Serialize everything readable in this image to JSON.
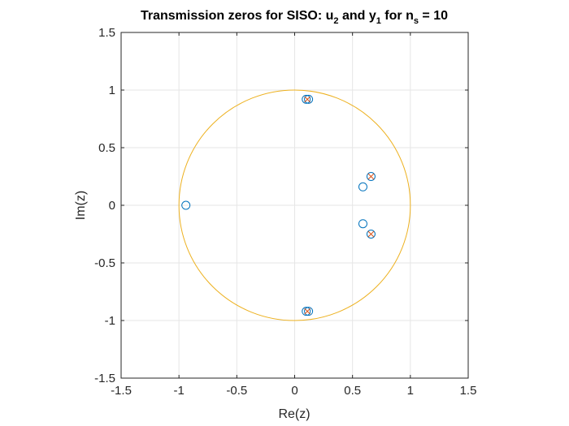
{
  "chart_data": {
    "type": "scatter",
    "title": {
      "prefix": "Transmission zeros for SISO: u",
      "u_sub": "2",
      "mid": " and y",
      "y_sub": "1",
      "for_text": " for n",
      "n_sub": "s",
      "suffix": " = 10"
    },
    "xlabel": "Re(z)",
    "ylabel": "Im(z)",
    "xlim": [
      -1.5,
      1.5
    ],
    "ylim": [
      -1.5,
      1.5
    ],
    "xticks": [
      -1.5,
      -1,
      -0.5,
      0,
      0.5,
      1,
      1.5
    ],
    "yticks": [
      -1.5,
      -1,
      -0.5,
      0,
      0.5,
      1,
      1.5
    ],
    "xtick_labels": [
      "-1.5",
      "-1",
      "-0.5",
      "0",
      "0.5",
      "1",
      "1.5"
    ],
    "ytick_labels": [
      "-1.5",
      "-1",
      "-0.5",
      "0",
      "0.5",
      "1",
      "1.5"
    ],
    "grid": true,
    "unit_circle": {
      "radius": 1,
      "color": "#EDB120"
    },
    "series": [
      {
        "marker": "circle",
        "color": "#0072BD",
        "points": [
          {
            "x": -0.94,
            "y": 0.0
          },
          {
            "x": 0.1,
            "y": 0.92
          },
          {
            "x": 0.12,
            "y": 0.92
          },
          {
            "x": 0.1,
            "y": -0.92
          },
          {
            "x": 0.12,
            "y": -0.92
          },
          {
            "x": 0.59,
            "y": 0.16
          },
          {
            "x": 0.59,
            "y": -0.16
          },
          {
            "x": 0.66,
            "y": 0.25
          },
          {
            "x": 0.66,
            "y": -0.25
          }
        ]
      },
      {
        "marker": "x",
        "color": "#D95319",
        "points": [
          {
            "x": 0.11,
            "y": 0.92
          },
          {
            "x": 0.11,
            "y": -0.92
          },
          {
            "x": 0.66,
            "y": 0.25
          },
          {
            "x": 0.66,
            "y": -0.25
          }
        ]
      }
    ],
    "colors": {
      "axis": "#262626",
      "grid": "#e6e6e6",
      "background": "#ffffff"
    }
  }
}
